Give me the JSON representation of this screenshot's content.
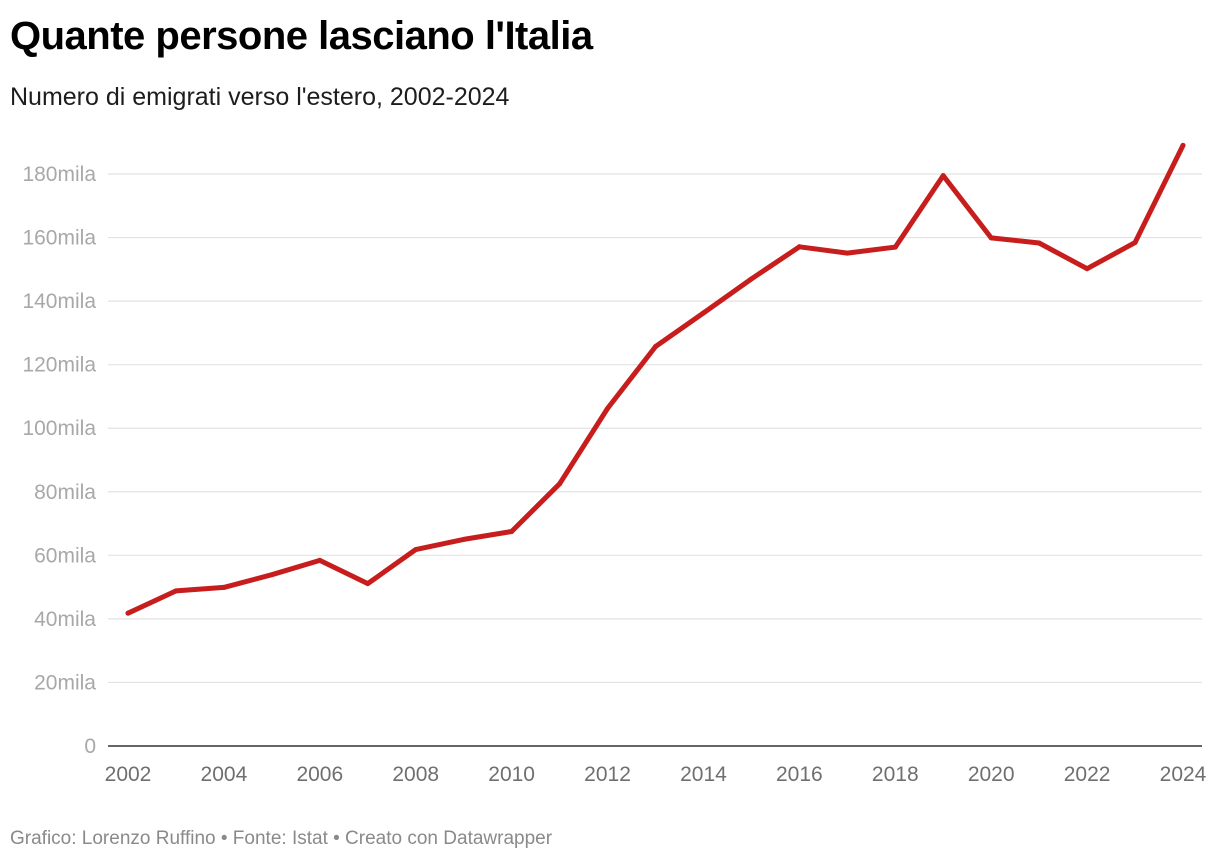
{
  "header": {
    "title": "Quante persone lasciano l'Italia",
    "subtitle": "Numero di emigrati verso l'estero, 2002-2024"
  },
  "footer": {
    "credits": "Grafico: Lorenzo Ruffino • Fonte: Istat • Creato con Datawrapper"
  },
  "chart_data": {
    "type": "line",
    "title": "Quante persone lasciano l'Italia",
    "subtitle": "Numero di emigrati verso l'estero, 2002-2024",
    "xlabel": "",
    "ylabel": "",
    "x": [
      2002,
      2003,
      2004,
      2005,
      2006,
      2007,
      2008,
      2009,
      2010,
      2011,
      2012,
      2013,
      2014,
      2015,
      2016,
      2017,
      2018,
      2019,
      2020,
      2021,
      2022,
      2023,
      2024
    ],
    "series": [
      {
        "name": "Emigrati",
        "color": "#c71e1d",
        "values": [
          41800,
          48800,
          49900,
          53900,
          58400,
          51100,
          61800,
          65000,
          67500,
          82500,
          106200,
          125700,
          136300,
          147000,
          157100,
          155100,
          157000,
          179500,
          159900,
          158300,
          150200,
          158400,
          189000
        ]
      }
    ],
    "ylim": [
      0,
      190000
    ],
    "yticks": [
      0,
      20000,
      40000,
      60000,
      80000,
      100000,
      120000,
      140000,
      160000,
      180000
    ],
    "ytick_labels": [
      "0",
      "20mila",
      "40mila",
      "60mila",
      "80mila",
      "100mila",
      "120mila",
      "140mila",
      "160mila",
      "180mila"
    ],
    "xticks": [
      2002,
      2004,
      2006,
      2008,
      2010,
      2012,
      2014,
      2016,
      2018,
      2020,
      2022,
      2024
    ],
    "xtick_labels": [
      "2002",
      "2004",
      "2006",
      "2008",
      "2010",
      "2012",
      "2014",
      "2016",
      "2018",
      "2020",
      "2022",
      "2024"
    ],
    "grid": true,
    "legend": "none"
  }
}
